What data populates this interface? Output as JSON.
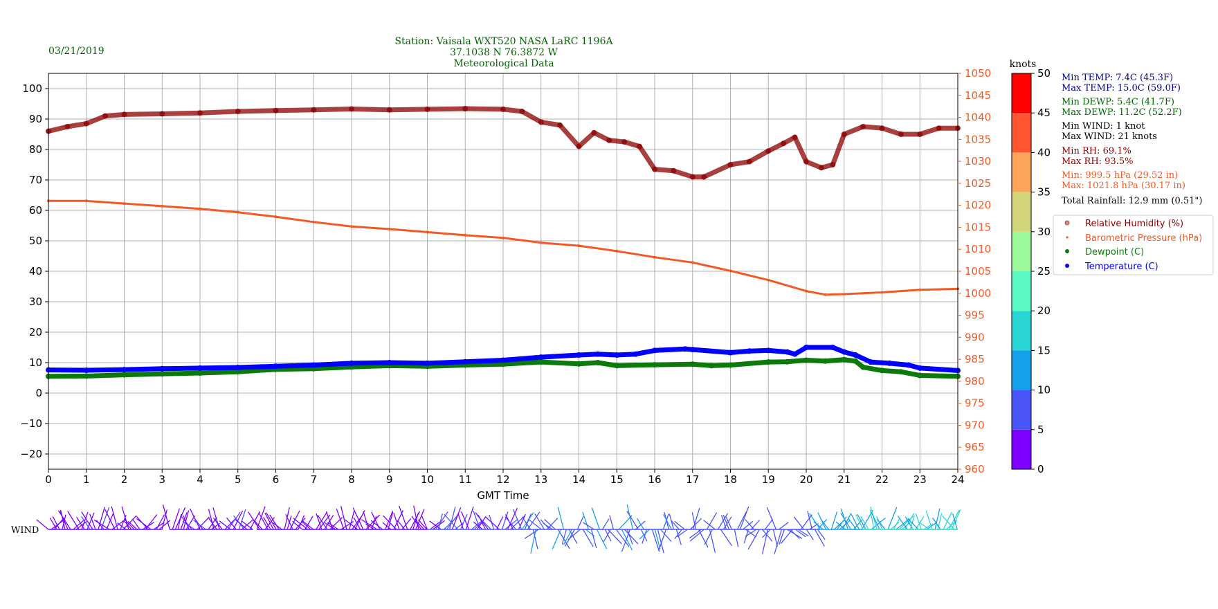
{
  "header": {
    "date": "03/21/2019",
    "station_line1": "Station:  Vaisala WXT520  NASA LaRC 1196A",
    "station_line2": "37.1038 N 76.3872 W",
    "station_line3": "Meteorological Data"
  },
  "colors": {
    "rh": "#8b0000",
    "pressure": "#f15a24",
    "dewpoint": "#0b7a0b",
    "temperature": "#0000ff",
    "header_text": "#006400",
    "temp_stats": "#00008b",
    "dewp_stats": "#006400",
    "wind_stats": "#000000",
    "rh_stats": "#8b0000",
    "pressure_stats": "#f15a24"
  },
  "stats": {
    "min_temp": "Min TEMP: 7.4C (45.3F)",
    "max_temp": "Max TEMP: 15.0C (59.0F)",
    "min_dewp": "Min DEWP: 5.4C (41.7F)",
    "max_dewp": "Max DEWP: 11.2C (52.2F)",
    "min_wind": "Min WIND: 1 knot",
    "max_wind": "Max WIND: 21 knots",
    "min_rh": "Min RH: 69.1%",
    "max_rh": "Max RH: 93.5%",
    "min_pressure": "Min: 999.5 hPa (29.52 in)",
    "max_pressure": "Max: 1021.8 hPa (30.17 in)",
    "rainfall": "Total Rainfall: 12.9 mm (0.51\")"
  },
  "wind_label": "WIND",
  "colorbar": {
    "title": "knots",
    "ticks": [
      "0",
      "5",
      "10",
      "15",
      "20",
      "25",
      "30",
      "35",
      "40",
      "45",
      "50"
    ],
    "colors": [
      "#7f00ff",
      "#4a55f9",
      "#15a1e9",
      "#2ad6d6",
      "#5efac4",
      "#9afa99",
      "#d3d67a",
      "#fda55b",
      "#ff5530",
      "#ff0000"
    ]
  },
  "chart_data": {
    "type": "scatter",
    "xlabel": "GMT Time",
    "xlim": [
      0,
      24
    ],
    "ylim": [
      -25,
      105
    ],
    "y2lim": [
      960,
      1050
    ],
    "x_ticks": [
      "0",
      "1",
      "2",
      "3",
      "4",
      "5",
      "6",
      "7",
      "8",
      "9",
      "10",
      "11",
      "12",
      "13",
      "14",
      "15",
      "16",
      "17",
      "18",
      "19",
      "20",
      "21",
      "22",
      "23",
      "24"
    ],
    "y_ticks": [
      "100",
      "90",
      "80",
      "70",
      "60",
      "50",
      "40",
      "30",
      "20",
      "10",
      "0",
      "−10",
      "−20"
    ],
    "y_tick_values": [
      100,
      90,
      80,
      70,
      60,
      50,
      40,
      30,
      20,
      10,
      0,
      -10,
      -20
    ],
    "y2_ticks": [
      "1050",
      "1045",
      "1040",
      "1035",
      "1030",
      "1025",
      "1020",
      "1015",
      "1010",
      "1005",
      "1000",
      "995",
      "990",
      "985",
      "980",
      "975",
      "970",
      "965",
      "960"
    ],
    "y2_tick_values": [
      1050,
      1045,
      1040,
      1035,
      1030,
      1025,
      1020,
      1015,
      1010,
      1005,
      1000,
      995,
      990,
      985,
      980,
      975,
      970,
      965,
      960
    ],
    "legend_position": "right",
    "grid": true,
    "series": [
      {
        "name": "Relative Humidity (%)",
        "axis": "left",
        "points": [
          [
            0,
            86
          ],
          [
            0.5,
            87.5
          ],
          [
            1,
            88.5
          ],
          [
            1.5,
            91
          ],
          [
            2,
            91.5
          ],
          [
            3,
            91.7
          ],
          [
            4,
            92
          ],
          [
            5,
            92.5
          ],
          [
            6,
            92.8
          ],
          [
            7,
            93
          ],
          [
            8,
            93.3
          ],
          [
            9,
            93
          ],
          [
            10,
            93.2
          ],
          [
            11,
            93.4
          ],
          [
            12,
            93.2
          ],
          [
            12.5,
            92.5
          ],
          [
            13,
            89
          ],
          [
            13.5,
            88
          ],
          [
            14,
            81
          ],
          [
            14.4,
            85.5
          ],
          [
            14.8,
            83
          ],
          [
            15.2,
            82.5
          ],
          [
            15.6,
            81
          ],
          [
            16,
            73.5
          ],
          [
            16.5,
            73
          ],
          [
            17,
            71
          ],
          [
            17.3,
            71
          ],
          [
            18,
            75
          ],
          [
            18.5,
            76
          ],
          [
            19,
            79.5
          ],
          [
            19.4,
            82
          ],
          [
            19.7,
            84
          ],
          [
            20,
            76
          ],
          [
            20.4,
            74
          ],
          [
            20.7,
            75
          ],
          [
            21,
            85
          ],
          [
            21.5,
            87.5
          ],
          [
            22,
            87
          ],
          [
            22.5,
            85
          ],
          [
            23,
            85
          ],
          [
            23.5,
            87
          ],
          [
            24,
            87
          ]
        ]
      },
      {
        "name": "Barometric Pressure (hPa)",
        "axis": "right",
        "points": [
          [
            0,
            1021
          ],
          [
            1,
            1021
          ],
          [
            2,
            1020.4
          ],
          [
            3,
            1019.8
          ],
          [
            4,
            1019.2
          ],
          [
            5,
            1018.4
          ],
          [
            6,
            1017.4
          ],
          [
            7,
            1016.2
          ],
          [
            8,
            1015.2
          ],
          [
            9,
            1014.6
          ],
          [
            10,
            1013.9
          ],
          [
            11,
            1013.2
          ],
          [
            12,
            1012.6
          ],
          [
            13,
            1011.5
          ],
          [
            14,
            1010.8
          ],
          [
            15,
            1009.6
          ],
          [
            16,
            1008.2
          ],
          [
            17,
            1007
          ],
          [
            18,
            1005.1
          ],
          [
            19,
            1003
          ],
          [
            20,
            1000.5
          ],
          [
            20.5,
            999.7
          ],
          [
            21,
            999.8
          ],
          [
            22,
            1000.2
          ],
          [
            23,
            1000.8
          ],
          [
            24,
            1001
          ]
        ]
      },
      {
        "name": "Dewpoint (C)",
        "axis": "left",
        "points": [
          [
            0,
            5.5
          ],
          [
            1,
            5.6
          ],
          [
            2,
            6
          ],
          [
            3,
            6.3
          ],
          [
            4,
            6.6
          ],
          [
            5,
            7
          ],
          [
            6,
            7.8
          ],
          [
            7,
            8
          ],
          [
            8,
            8.6
          ],
          [
            9,
            9
          ],
          [
            10,
            8.8
          ],
          [
            11,
            9.2
          ],
          [
            12,
            9.5
          ],
          [
            13,
            10.2
          ],
          [
            14,
            9.6
          ],
          [
            14.5,
            10
          ],
          [
            15,
            9
          ],
          [
            16,
            9.3
          ],
          [
            17,
            9.5
          ],
          [
            17.5,
            9
          ],
          [
            18,
            9.2
          ],
          [
            19,
            10.2
          ],
          [
            19.5,
            10.3
          ],
          [
            20,
            10.8
          ],
          [
            20.5,
            10.5
          ],
          [
            21,
            11
          ],
          [
            21.3,
            10.5
          ],
          [
            21.5,
            8.5
          ],
          [
            22,
            7.4
          ],
          [
            22.5,
            7
          ],
          [
            23,
            5.8
          ],
          [
            24,
            5.5
          ]
        ]
      },
      {
        "name": "Temperature (C)",
        "axis": "left",
        "points": [
          [
            0,
            7.6
          ],
          [
            1,
            7.5
          ],
          [
            2,
            7.7
          ],
          [
            3,
            8
          ],
          [
            4,
            8.2
          ],
          [
            5,
            8.4
          ],
          [
            6,
            8.8
          ],
          [
            7,
            9.2
          ],
          [
            8,
            9.8
          ],
          [
            9,
            10
          ],
          [
            10,
            9.8
          ],
          [
            11,
            10.3
          ],
          [
            12,
            10.8
          ],
          [
            13,
            11.8
          ],
          [
            14,
            12.5
          ],
          [
            14.5,
            12.8
          ],
          [
            15,
            12.5
          ],
          [
            15.5,
            12.8
          ],
          [
            16,
            14
          ],
          [
            16.8,
            14.5
          ],
          [
            17,
            14.3
          ],
          [
            18,
            13.3
          ],
          [
            18.5,
            13.8
          ],
          [
            19,
            14
          ],
          [
            19.5,
            13.5
          ],
          [
            19.7,
            12.8
          ],
          [
            20,
            15
          ],
          [
            20.7,
            15
          ],
          [
            21,
            13.5
          ],
          [
            21.3,
            12.5
          ],
          [
            21.7,
            10.2
          ],
          [
            22.2,
            9.8
          ],
          [
            22.7,
            9.2
          ],
          [
            23,
            8.2
          ],
          [
            24,
            7.4
          ]
        ]
      }
    ]
  },
  "wind_data": {
    "note_units": "knots",
    "segments": [
      {
        "from": 0.0,
        "to": 3.0,
        "speed": 3.5
      },
      {
        "from": 3.2,
        "to": 5.4,
        "speed": 3.5
      },
      {
        "from": 5.5,
        "to": 6.6,
        "speed": 1.5
      },
      {
        "from": 6.7,
        "to": 10.0,
        "speed": 3
      },
      {
        "from": 10.0,
        "to": 12.5,
        "speed": 5
      },
      {
        "from": 12.5,
        "to": 16.5,
        "speed": 9
      },
      {
        "from": 16.5,
        "to": 20.3,
        "speed": 7
      },
      {
        "from": 20.3,
        "to": 21.5,
        "speed": 13
      },
      {
        "from": 21.5,
        "to": 24.0,
        "speed": 15
      }
    ]
  }
}
